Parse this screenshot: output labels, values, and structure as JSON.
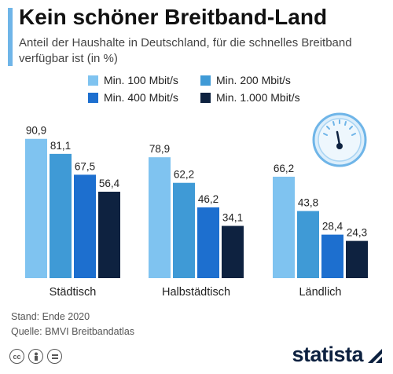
{
  "header": {
    "title": "Kein schöner Breitband-Land",
    "subtitle": "Anteil der Haushalte in Deutschland, für die schnelles Breitband verfügbar ist (in %)"
  },
  "chart_data": {
    "type": "bar",
    "categories": [
      "Städtisch",
      "Halbstädtisch",
      "Ländlich"
    ],
    "series": [
      {
        "name": "Min. 100 Mbit/s",
        "color": "#7fc3f0",
        "values": [
          90.9,
          78.9,
          66.2
        ],
        "labels": [
          "90,9",
          "78,9",
          "66,2"
        ]
      },
      {
        "name": "Min. 200 Mbit/s",
        "color": "#3f9ad6",
        "values": [
          81.1,
          62.2,
          43.8
        ],
        "labels": [
          "81,1",
          "62,2",
          "43,8"
        ]
      },
      {
        "name": "Min. 400 Mbit/s",
        "color": "#1d6fcf",
        "values": [
          67.5,
          46.2,
          28.4
        ],
        "labels": [
          "67,5",
          "46,2",
          "28,4"
        ]
      },
      {
        "name": "Min. 1.000 Mbit/s",
        "color": "#0e2240",
        "values": [
          56.4,
          34.1,
          24.3
        ],
        "labels": [
          "56,4",
          "34,1",
          "24,3"
        ]
      }
    ],
    "ylim": [
      0,
      100
    ],
    "legend_position": "top",
    "grid": false
  },
  "footer": {
    "stand": "Stand: Ende 2020",
    "quelle": "Quelle: BMVI Breitbandatlas",
    "brand": "statista"
  },
  "icons": [
    "gauge-icon",
    "cc-icon",
    "person-icon",
    "equals-icon",
    "statista-logo-icon"
  ]
}
